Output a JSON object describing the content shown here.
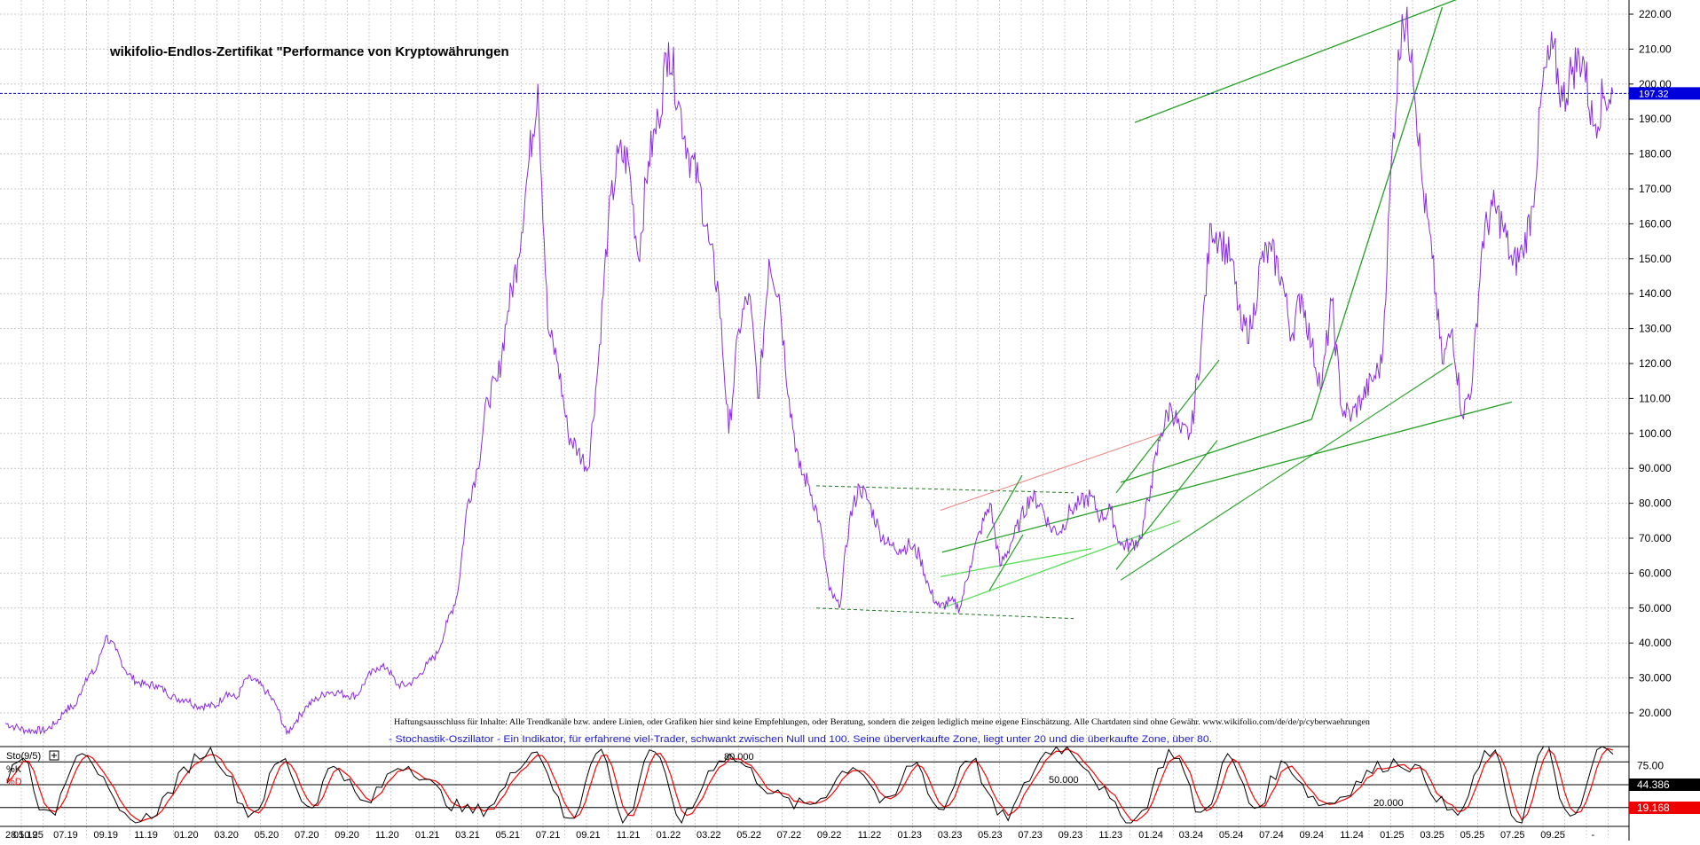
{
  "chart_data": {
    "type": "line",
    "title": "wikifolio-Endlos-Zertifikat \"Performance von Kryptowährungen",
    "disclaimer": "Haftungsausschluss für Inhalte: Alle Trendkanäle bzw. andere Linien, oder Grafiken hier sind keine Empfehlungen, oder Beratung, sondern die zeigen lediglich meine eigene Einschätzung. Alle Chartdaten sind ohne Gewähr.  www.wikifolio.com/de/de/p/cyberwaehrungen",
    "indicator_note": "- Stochastik-Oszillator - Ein Indikator, für erfahrene viel-Trader, schwankt zwischen Null und 100. Seine überverkaufte Zone, liegt unter 20 und die überkaufte Zone, über 80.",
    "ylim": [
      12,
      224
    ],
    "y_ticks": [
      "20.000",
      "30.000",
      "40.000",
      "50.000",
      "60.000",
      "70.000",
      "80.000",
      "90.000",
      "100.00",
      "110.00",
      "120.00",
      "130.00",
      "140.00",
      "150.00",
      "160.00",
      "170.00",
      "180.00",
      "190.00",
      "200.00",
      "210.00",
      "220.00"
    ],
    "y_tick_values": [
      20,
      30,
      40,
      50,
      60,
      70,
      80,
      90,
      100,
      110,
      120,
      130,
      140,
      150,
      160,
      170,
      180,
      190,
      200,
      210,
      220
    ],
    "x_ticks": [
      "28.10.25",
      "05.19",
      "07.19",
      "09.19",
      "11.19",
      "01.20",
      "03.20",
      "05.20",
      "07.20",
      "09.20",
      "11.20",
      "01.21",
      "03.21",
      "05.21",
      "07.21",
      "09.21",
      "11.21",
      "01.22",
      "03.22",
      "05.22",
      "07.22",
      "09.22",
      "11.22",
      "01.23",
      "03.23",
      "05.23",
      "07.23",
      "09.23",
      "11.23",
      "01.24",
      "03.24",
      "05.24",
      "07.24",
      "09.24",
      "11.24",
      "01.25",
      "03.25",
      "05.25",
      "07.25",
      "09.25",
      "-"
    ],
    "x_tick_index": [
      0,
      2,
      6,
      10,
      14,
      18,
      22,
      26,
      30,
      34,
      38,
      42,
      46,
      50,
      54,
      58,
      62,
      66,
      70,
      74,
      78,
      82,
      86,
      90,
      94,
      98,
      102,
      106,
      110,
      114,
      118,
      122,
      126,
      130,
      134,
      138,
      142,
      146,
      150,
      154,
      158
    ],
    "last_value": "197.32",
    "last_value_num": 197.32,
    "series": [
      {
        "color": "#8a2be2",
        "values": [
          17,
          16,
          15,
          15,
          15,
          17,
          21,
          22,
          30,
          32,
          42,
          38,
          32,
          29,
          28,
          28,
          26,
          24,
          24,
          22,
          22,
          22,
          26,
          24,
          30,
          29,
          26,
          22,
          14,
          18,
          22,
          24,
          26,
          26,
          25,
          25,
          30,
          33,
          33,
          28,
          28,
          30,
          34,
          37,
          46,
          54,
          80,
          90,
          110,
          115,
          135,
          150,
          175,
          200,
          130,
          120,
          100,
          95,
          90,
          120,
          160,
          180,
          178,
          150,
          178,
          190,
          212,
          195,
          180,
          172,
          155,
          140,
          100,
          130,
          140,
          110,
          150,
          140,
          110,
          90,
          85,
          75,
          55,
          50,
          75,
          85,
          80,
          72,
          68,
          67,
          68,
          65,
          55,
          50,
          52,
          50,
          62,
          72,
          80,
          62,
          68,
          75,
          82,
          80,
          73,
          72,
          78,
          80,
          82,
          76,
          78,
          68,
          68,
          70,
          85,
          100,
          108,
          100,
          100,
          125,
          160,
          155,
          150,
          130,
          130,
          150,
          152,
          145,
          128,
          140,
          125,
          113,
          138,
          107,
          105,
          110,
          115,
          120,
          180,
          220,
          210,
          172,
          150,
          120,
          130,
          105,
          115,
          155,
          165,
          160,
          148,
          152,
          165,
          200,
          210,
          195,
          205,
          208,
          188,
          196,
          197.32
        ]
      }
    ],
    "stochastic": {
      "label": "Sto(9/5)",
      "k_label": "%K",
      "d_label": "%D",
      "k_color": "#000000",
      "d_color": "#ff0000",
      "ylim": [
        0,
        100
      ],
      "ref_levels": [
        20,
        50,
        80
      ],
      "ref_labels": [
        "20.000",
        "50.000",
        "80.000"
      ],
      "axis_labels": [
        "75.00"
      ],
      "k_last": "44.386",
      "d_last": "19.168"
    },
    "annotations": {
      "trend_color": "#22a022",
      "dashed_color": "#1e7a1e",
      "light_trend_color": "#55dd55",
      "resistance_color": "#f08080"
    }
  }
}
